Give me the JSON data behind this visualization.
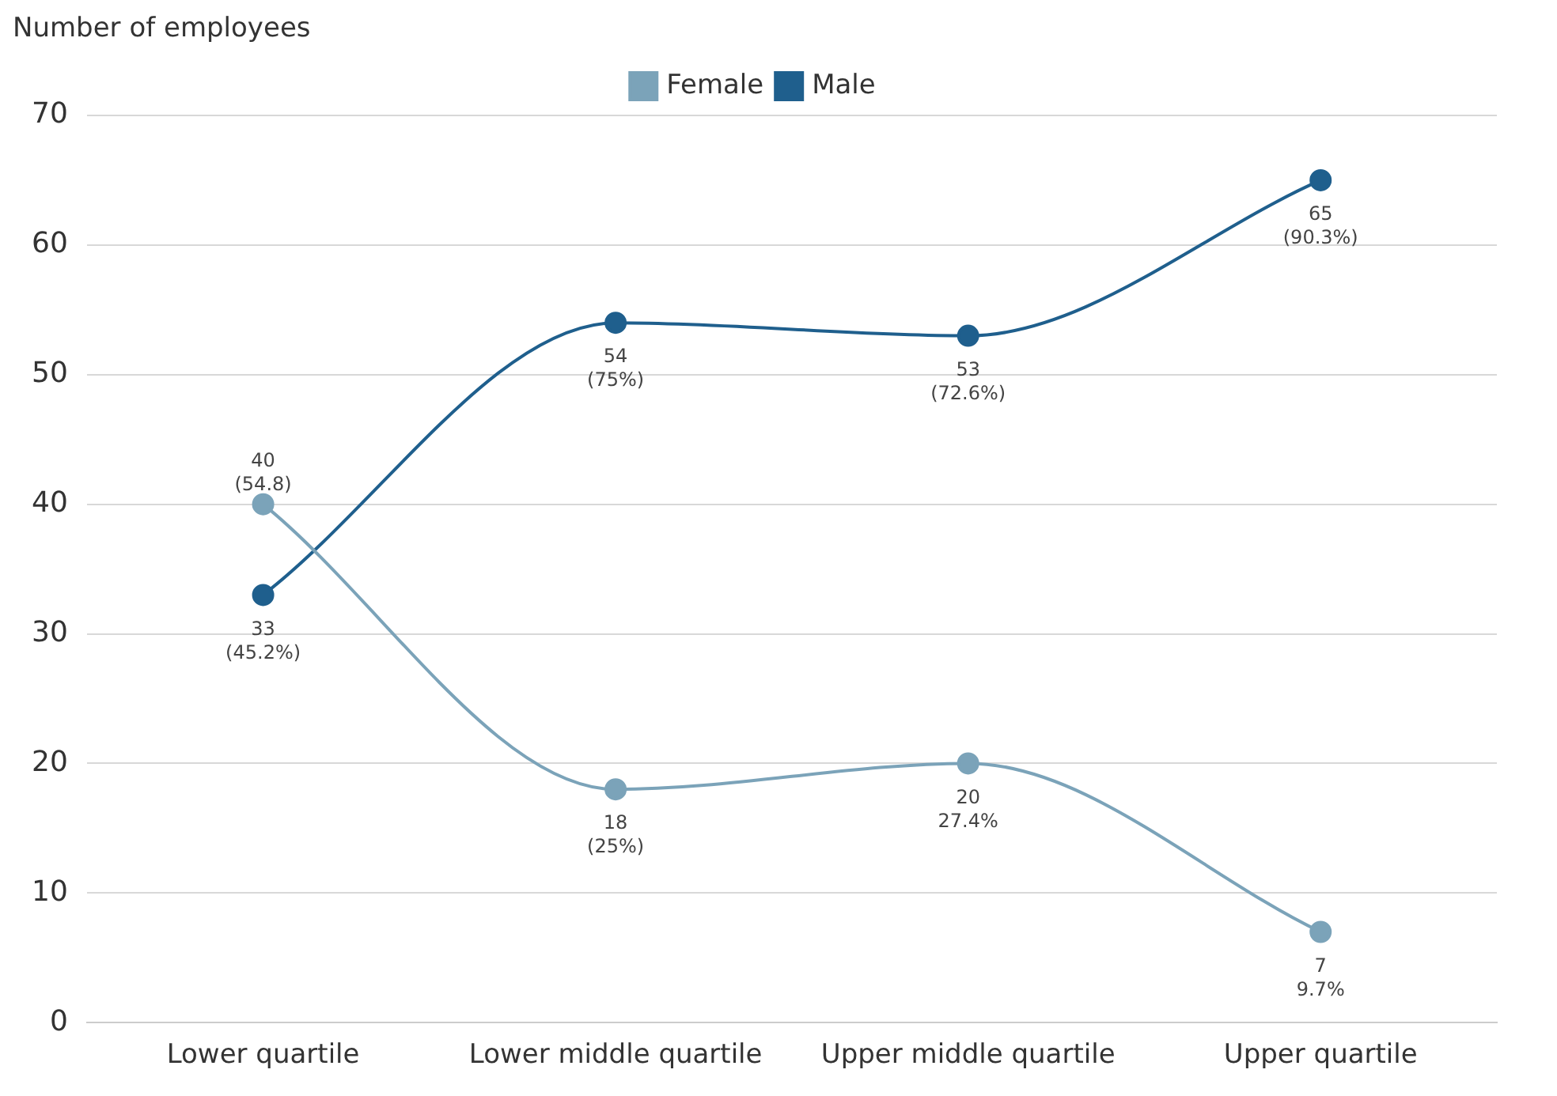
{
  "chart_data": {
    "type": "line",
    "ylabel": "Number of employees",
    "categories": [
      "Lower quartile",
      "Lower middle quartile",
      "Upper middle quartile",
      "Upper quartile"
    ],
    "series": [
      {
        "name": "Female",
        "color": "#7ba3b9",
        "values": [
          40,
          18,
          20,
          7
        ],
        "value_labels": [
          "40\n(54.8)",
          "18\n(25%)",
          "20\n27.4%",
          "7\n9.7%"
        ]
      },
      {
        "name": "Male",
        "color": "#1f5f8d",
        "values": [
          33,
          54,
          53,
          65
        ],
        "value_labels": [
          "33\n(45.2%)",
          "54\n(75%)",
          "53\n(72.6%)",
          "65\n(90.3%)"
        ]
      }
    ],
    "ylim": [
      0,
      70
    ],
    "yticks": [
      0,
      10,
      20,
      30,
      40,
      50,
      60,
      70
    ],
    "grid": "y",
    "legend": "top",
    "marker": "circle",
    "line_style": "solid"
  }
}
